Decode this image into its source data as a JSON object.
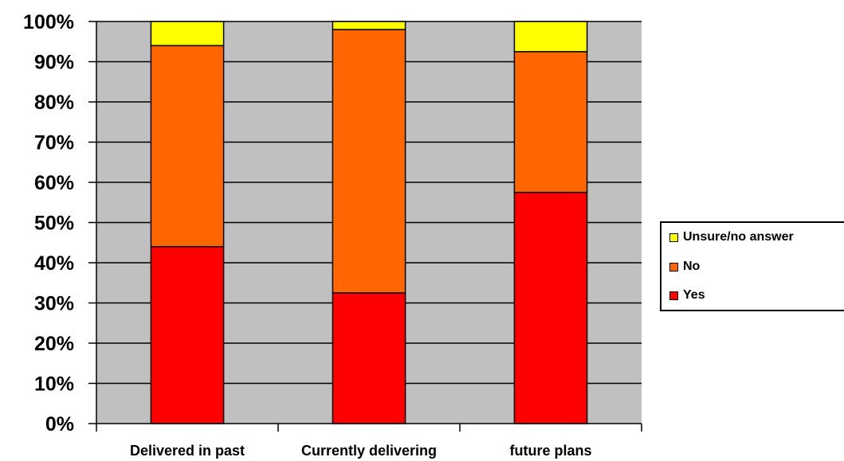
{
  "chart_data": {
    "type": "bar",
    "stacked": true,
    "categories": [
      "Delivered in past",
      "Currently delivering",
      "future plans"
    ],
    "series": [
      {
        "name": "Yes",
        "color": "#ff0000",
        "values": [
          44,
          32.5,
          57.5
        ]
      },
      {
        "name": "No",
        "color": "#ff6600",
        "values": [
          50,
          65.5,
          35
        ]
      },
      {
        "name": "Unsure/no answer",
        "color": "#ffff00",
        "values": [
          6,
          2,
          7.5
        ]
      }
    ],
    "ylim": [
      0,
      100
    ],
    "yticks": [
      "0%",
      "10%",
      "20%",
      "30%",
      "40%",
      "50%",
      "60%",
      "70%",
      "80%",
      "90%",
      "100%"
    ],
    "grid": true,
    "plot_background": "#c0c0c0",
    "legend_position": "right"
  },
  "legend": {
    "items": [
      {
        "label": "Unsure/no answer",
        "color": "#ffff00"
      },
      {
        "label": "No",
        "color": "#ff6600"
      },
      {
        "label": "Yes",
        "color": "#ff0000"
      }
    ]
  }
}
